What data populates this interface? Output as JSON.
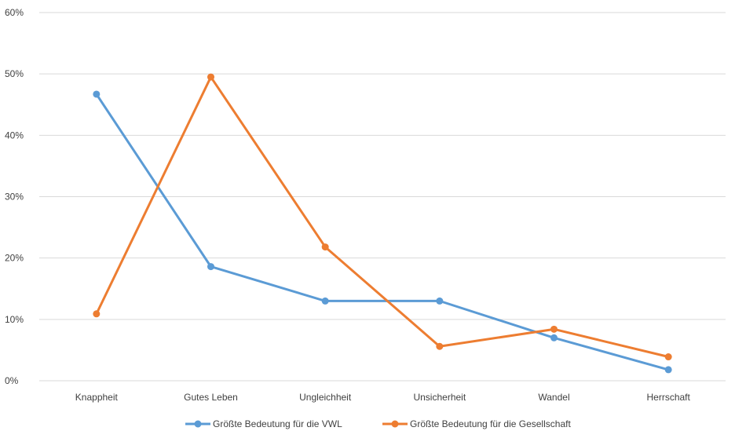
{
  "chart_data": {
    "type": "line",
    "categories": [
      "Knappheit",
      "Gutes Leben",
      "Ungleichheit",
      "Unsicherheit",
      "Wandel",
      "Herrschaft"
    ],
    "series": [
      {
        "name": "Größte Bedeutung für die VWL",
        "color": "#5B9BD5",
        "values": [
          46.7,
          18.6,
          13.0,
          13.0,
          7.0,
          1.8
        ]
      },
      {
        "name": "Größte Bedeutung für die Gesellschaft",
        "color": "#ED7D31",
        "values": [
          10.9,
          49.5,
          21.8,
          5.6,
          8.4,
          3.9
        ]
      }
    ],
    "ylim": [
      0,
      60
    ],
    "yticks": [
      0,
      10,
      20,
      30,
      40,
      50,
      60
    ],
    "ytick_labels": [
      "0%",
      "10%",
      "20%",
      "30%",
      "40%",
      "50%",
      "60%"
    ],
    "grid": true,
    "legend_position": "bottom"
  },
  "colors": {
    "gridline": "#D9D9D9",
    "text": "#404040"
  }
}
